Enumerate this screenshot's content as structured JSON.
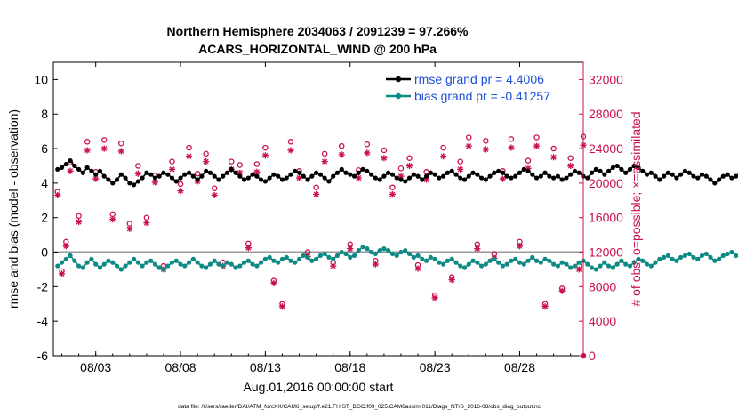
{
  "chart_data": {
    "type": "line",
    "title": "Northern Hemisphere 2034063 / 2091239 = 97.266%",
    "subtitle": "ACARS_HORIZONTAL_WIND @ 200 hPa",
    "xlabel": "Aug.01,2016 00:00:00 start",
    "ylabel": "rmse and bias (model - observation)",
    "y2label": "# of obs: o=possible; ×=assimilated",
    "footer": "data file: /Users/raeder/DAI/ATM_forcXX/CAM6_setup/f.e21.FHIST_BGC.f09_025.CAM6assim.011/Diags_NTrS_2016-08/obs_diag_output.nc",
    "xlim": [
      0.5,
      31.75
    ],
    "ylim": [
      -6,
      11
    ],
    "y2lim": [
      0,
      34000
    ],
    "x_ticks": [
      3,
      8,
      13,
      18,
      23,
      28
    ],
    "x_tick_labels": [
      "08/03",
      "08/08",
      "08/13",
      "08/18",
      "08/23",
      "08/28"
    ],
    "y_ticks": [
      -6,
      -4,
      -2,
      0,
      2,
      4,
      6,
      8,
      10
    ],
    "y_tick_labels": [
      "-6",
      "-4",
      "-2",
      "0",
      "2",
      "4",
      "6",
      "8",
      "10"
    ],
    "y2_ticks": [
      0,
      4000,
      8000,
      12000,
      16000,
      20000,
      24000,
      28000,
      32000
    ],
    "y2_tick_labels": [
      "0",
      "4000",
      "8000",
      "12000",
      "16000",
      "20000",
      "24000",
      "28000",
      "32000"
    ],
    "zero_line": 0,
    "grid": false,
    "legend_position": "top-right",
    "series": [
      {
        "name": "rmse grand pr = 4.4006",
        "color": "#000000",
        "axis": "left",
        "start_day": 0.75,
        "step_days": 0.25,
        "values": [
          4.8,
          4.9,
          5.1,
          5.3,
          5.0,
          4.8,
          4.6,
          4.9,
          4.7,
          4.5,
          4.7,
          4.4,
          4.2,
          4.0,
          4.2,
          4.5,
          4.3,
          4.0,
          3.9,
          4.1,
          4.3,
          4.6,
          4.5,
          4.3,
          4.4,
          4.6,
          4.5,
          4.3,
          4.1,
          4.3,
          4.5,
          4.6,
          4.4,
          4.2,
          4.4,
          4.7,
          4.6,
          4.4,
          4.2,
          4.4,
          4.6,
          4.8,
          4.6,
          4.4,
          4.2,
          4.3,
          4.5,
          4.4,
          4.2,
          4.1,
          4.3,
          4.5,
          4.4,
          4.2,
          4.3,
          4.5,
          4.7,
          4.6,
          4.4,
          4.2,
          4.4,
          4.6,
          4.5,
          4.3,
          4.1,
          4.4,
          4.6,
          4.8,
          4.6,
          4.5,
          4.4,
          4.6,
          4.8,
          4.7,
          4.5,
          4.3,
          4.2,
          4.4,
          4.6,
          4.5,
          4.3,
          4.2,
          4.1,
          4.3,
          4.5,
          4.4,
          4.2,
          4.4,
          4.6,
          4.5,
          4.3,
          4.4,
          4.6,
          4.7,
          4.5,
          4.3,
          4.2,
          4.4,
          4.6,
          4.5,
          4.3,
          4.2,
          4.4,
          4.6,
          4.7,
          4.6,
          4.4,
          4.3,
          4.4,
          4.6,
          4.8,
          4.7,
          4.5,
          4.3,
          4.4,
          4.6,
          4.4,
          4.3,
          4.4,
          4.2,
          4.3,
          4.5,
          4.7,
          4.6,
          4.4,
          4.3,
          4.6,
          4.8,
          4.7,
          4.5,
          4.7,
          4.9,
          5.0,
          4.8,
          4.6,
          4.8,
          5.0,
          4.9,
          4.7,
          4.5,
          4.6,
          4.4,
          4.2,
          4.4,
          4.6,
          4.5,
          4.3,
          4.5,
          4.7,
          4.6,
          4.4,
          4.3,
          4.5,
          4.4,
          4.2,
          4.0,
          4.2,
          4.4,
          4.5,
          4.3,
          4.4,
          4.6,
          4.7,
          4.5,
          4.3,
          4.5,
          4.7,
          4.6,
          4.4,
          4.6,
          4.8,
          4.7,
          4.5,
          4.3,
          4.5,
          4.7,
          4.8,
          4.6,
          4.4,
          4.6,
          4.8,
          5.0,
          5.2,
          5.0,
          4.8,
          4.6,
          4.8,
          5.0,
          4.8,
          4.6,
          4.5,
          4.4,
          4.6,
          4.5,
          4.3,
          4.5,
          4.7,
          4.6,
          4.4,
          4.3,
          4.2,
          4.0,
          4.2,
          4.4,
          4.3,
          4.5,
          4.4,
          4.6,
          4.5,
          4.3,
          4.4,
          4.6,
          4.5,
          4.3,
          4.4,
          4.6,
          4.7,
          4.5,
          4.4,
          4.3,
          4.2
        ]
      },
      {
        "name": "bias grand pr = -0.41257",
        "color": "#0d8a84",
        "axis": "left",
        "start_day": 0.75,
        "step_days": 0.25,
        "values": [
          -0.8,
          -0.6,
          -0.4,
          -0.2,
          -0.5,
          -0.8,
          -0.9,
          -0.6,
          -0.4,
          -0.7,
          -0.9,
          -0.7,
          -0.5,
          -0.6,
          -0.8,
          -1.0,
          -0.8,
          -0.6,
          -0.4,
          -0.6,
          -0.8,
          -0.6,
          -0.5,
          -0.7,
          -0.9,
          -1.0,
          -0.8,
          -0.6,
          -0.5,
          -0.7,
          -0.8,
          -0.6,
          -0.4,
          -0.6,
          -0.8,
          -0.9,
          -0.7,
          -0.5,
          -0.7,
          -0.8,
          -0.6,
          -0.7,
          -0.9,
          -0.8,
          -0.6,
          -0.5,
          -0.7,
          -0.8,
          -0.6,
          -0.4,
          -0.3,
          -0.5,
          -0.6,
          -0.4,
          -0.3,
          -0.5,
          -0.6,
          -0.4,
          -0.2,
          -0.3,
          -0.5,
          -0.4,
          -0.2,
          -0.1,
          -0.3,
          -0.4,
          -0.2,
          0.0,
          -0.1,
          -0.3,
          -0.2,
          0.1,
          0.3,
          0.2,
          0.0,
          -0.1,
          0.1,
          0.2,
          0.1,
          -0.1,
          -0.2,
          0.0,
          0.1,
          -0.1,
          -0.3,
          -0.2,
          -0.4,
          -0.5,
          -0.3,
          -0.4,
          -0.6,
          -0.7,
          -0.5,
          -0.4,
          -0.6,
          -0.8,
          -0.9,
          -0.7,
          -0.5,
          -0.6,
          -0.8,
          -0.7,
          -0.5,
          -0.4,
          -0.6,
          -0.8,
          -0.7,
          -0.5,
          -0.4,
          -0.6,
          -0.7,
          -0.5,
          -0.3,
          -0.5,
          -0.6,
          -0.4,
          -0.5,
          -0.7,
          -0.8,
          -0.6,
          -0.7,
          -0.9,
          -0.8,
          -0.6,
          -0.5,
          -0.7,
          -0.9,
          -1.0,
          -0.8,
          -0.6,
          -0.8,
          -0.9,
          -0.7,
          -0.5,
          -0.7,
          -0.8,
          -0.6,
          -0.4,
          -0.5,
          -0.7,
          -0.8,
          -0.6,
          -0.4,
          -0.3,
          -0.2,
          -0.4,
          -0.5,
          -0.3,
          -0.2,
          -0.1,
          -0.3,
          -0.4,
          -0.2,
          -0.1,
          -0.3,
          -0.5,
          -0.4,
          -0.2,
          -0.1,
          0.0,
          -0.2,
          -0.3,
          -0.1,
          0.1,
          0.3,
          0.1,
          -0.1,
          -0.2,
          0.0,
          0.1,
          -0.1,
          -0.3,
          -0.4,
          -0.2,
          -0.3,
          -0.5,
          -0.6,
          -0.4,
          -0.3,
          -0.5,
          -0.6,
          -0.4,
          -0.2,
          -0.4,
          -0.5,
          -0.3,
          -0.1,
          0.0,
          0.2,
          0.0,
          -0.2,
          -0.3,
          -0.1,
          0.0,
          -0.2,
          -0.4,
          -0.5,
          -0.3,
          -0.4,
          -0.6,
          -0.7,
          -0.5,
          -0.4,
          -0.6,
          -0.7,
          -0.5,
          -0.3,
          -0.5,
          -0.6,
          -0.4,
          -0.5,
          -0.7,
          -0.6,
          -0.4,
          -0.2,
          -0.4,
          0.3,
          -0.6,
          -0.3
        ]
      }
    ],
    "obs_possible": {
      "name": "# of obs possible (o)",
      "color": "#c8104c",
      "axis": "right",
      "marker": "circle",
      "x": [
        0.75,
        1.0,
        1.25,
        1.5,
        2.0,
        2.5,
        3.0,
        3.5,
        4.0,
        4.5,
        5.0,
        5.5,
        6.0,
        6.5,
        7.0,
        7.5,
        8.0,
        8.5,
        9.0,
        9.5,
        10.0,
        10.5,
        11.0,
        11.5,
        12.0,
        12.5,
        13.0,
        13.5,
        14.0,
        14.5,
        15.0,
        15.5,
        16.0,
        16.5,
        17.0,
        17.5,
        18.0,
        18.5,
        19.0,
        19.5,
        20.0,
        20.5,
        21.0,
        21.5,
        22.0,
        22.5,
        23.0,
        23.5,
        24.0,
        24.5,
        25.0,
        25.5,
        26.0,
        26.5,
        27.0,
        27.5,
        28.0,
        28.5,
        29.0,
        29.5,
        30.0,
        30.5,
        31.0,
        31.5,
        31.75
      ],
      "values": [
        19000,
        9800,
        13200,
        22400,
        16200,
        24800,
        21300,
        25000,
        16400,
        24600,
        15300,
        22000,
        16000,
        20900,
        10400,
        22500,
        19900,
        24100,
        21100,
        23400,
        19400,
        10800,
        22500,
        22100,
        13000,
        22200,
        24100,
        8700,
        6000,
        24800,
        21400,
        12000,
        19500,
        23400,
        10800,
        24300,
        12900,
        21500,
        24500,
        11000,
        23800,
        19500,
        21700,
        22900,
        10500,
        21300,
        7000,
        24100,
        9100,
        22500,
        25300,
        12900,
        24900,
        11800,
        21400,
        25100,
        13200,
        22600,
        25300,
        6000,
        24000,
        7800,
        22900,
        10400,
        25400
      ]
    },
    "obs_assimilated": {
      "name": "# of obs assimilated (×)",
      "color": "#c8104c",
      "axis": "right",
      "marker": "star",
      "x": [
        0.75,
        1.0,
        1.25,
        1.5,
        2.0,
        2.5,
        3.0,
        3.5,
        4.0,
        4.5,
        5.0,
        5.5,
        6.0,
        6.5,
        7.0,
        7.5,
        8.0,
        8.5,
        9.0,
        9.5,
        10.0,
        10.5,
        11.0,
        11.5,
        12.0,
        12.5,
        13.0,
        13.5,
        14.0,
        14.5,
        15.0,
        15.5,
        16.0,
        16.5,
        17.0,
        17.5,
        18.0,
        18.5,
        19.0,
        19.5,
        20.0,
        20.5,
        21.0,
        21.5,
        22.0,
        22.5,
        23.0,
        23.5,
        24.0,
        24.5,
        25.0,
        25.5,
        26.0,
        26.5,
        27.0,
        27.5,
        28.0,
        28.5,
        29.0,
        29.5,
        30.0,
        30.5,
        31.0,
        31.5,
        31.75
      ],
      "values": [
        18600,
        9500,
        12700,
        21400,
        15500,
        23800,
        20500,
        24000,
        15800,
        23700,
        14700,
        21100,
        15400,
        20100,
        10000,
        21600,
        19100,
        23100,
        20200,
        22500,
        18600,
        10400,
        21600,
        21200,
        12500,
        21300,
        23200,
        8400,
        5700,
        23800,
        20600,
        11500,
        18700,
        22500,
        10400,
        23300,
        12400,
        20600,
        23500,
        10600,
        22900,
        18700,
        20800,
        22000,
        10100,
        20400,
        6700,
        23100,
        8800,
        21600,
        24300,
        12400,
        23900,
        11300,
        20500,
        24100,
        12700,
        21700,
        24300,
        5700,
        23000,
        7500,
        22000,
        10000,
        24400
      ]
    },
    "extra_point": {
      "x": 31.75,
      "y2": 0
    }
  }
}
